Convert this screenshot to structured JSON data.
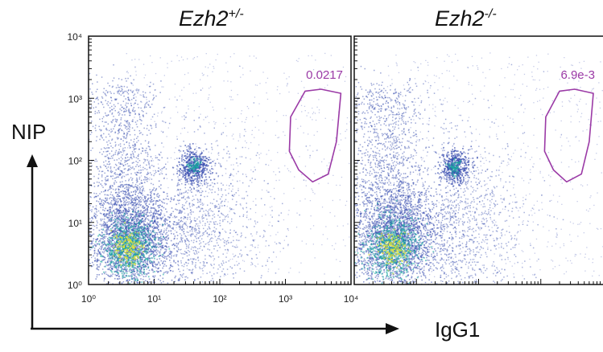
{
  "chart_data": {
    "type": "scatter",
    "subtype": "flow-cytometry-density",
    "xlabel": "IgG1",
    "ylabel": "NIP",
    "x_scale": "log",
    "y_scale": "log",
    "xlim": [
      1,
      10000
    ],
    "ylim": [
      1,
      10000
    ],
    "x_tick_labels": [
      "10⁰",
      "10¹",
      "10²",
      "10³",
      "10⁴"
    ],
    "y_tick_labels": [
      "10⁰",
      "10¹",
      "10²",
      "10³",
      "10⁴"
    ],
    "grid": false,
    "colors": {
      "gate": "#9b3aa6",
      "density_low": "#3a4fb0",
      "density_mid": "#18a9a0",
      "density_high": "#e3e638",
      "frame": "#111111"
    },
    "panels": [
      {
        "title_base": "Ezh2",
        "title_sup": "+/-",
        "gate_percent_label": "0.0217",
        "gate_polygon": [
          [
            2000,
            1300
          ],
          [
            3500,
            1400
          ],
          [
            7000,
            1200
          ],
          [
            6000,
            200
          ],
          [
            4500,
            60
          ],
          [
            2600,
            45
          ],
          [
            1600,
            70
          ],
          [
            1150,
            140
          ],
          [
            1200,
            500
          ]
        ],
        "clusters": [
          {
            "name": "main",
            "x_center": 4,
            "y_center": 4,
            "density": "high"
          },
          {
            "name": "NIP+ IgG1- subset",
            "x_center": 40,
            "y_center": 80,
            "density": "mid"
          }
        ]
      },
      {
        "title_base": "Ezh2",
        "title_sup": "-/-",
        "gate_percent_label": "6.9e-3",
        "gate_polygon": [
          [
            2000,
            1300
          ],
          [
            3500,
            1400
          ],
          [
            7000,
            1200
          ],
          [
            6000,
            200
          ],
          [
            4500,
            60
          ],
          [
            2600,
            45
          ],
          [
            1600,
            70
          ],
          [
            1150,
            140
          ],
          [
            1200,
            500
          ]
        ],
        "clusters": [
          {
            "name": "main",
            "x_center": 4,
            "y_center": 4,
            "density": "high"
          },
          {
            "name": "NIP+ IgG1- subset",
            "x_center": 40,
            "y_center": 80,
            "density": "mid"
          }
        ]
      }
    ]
  }
}
